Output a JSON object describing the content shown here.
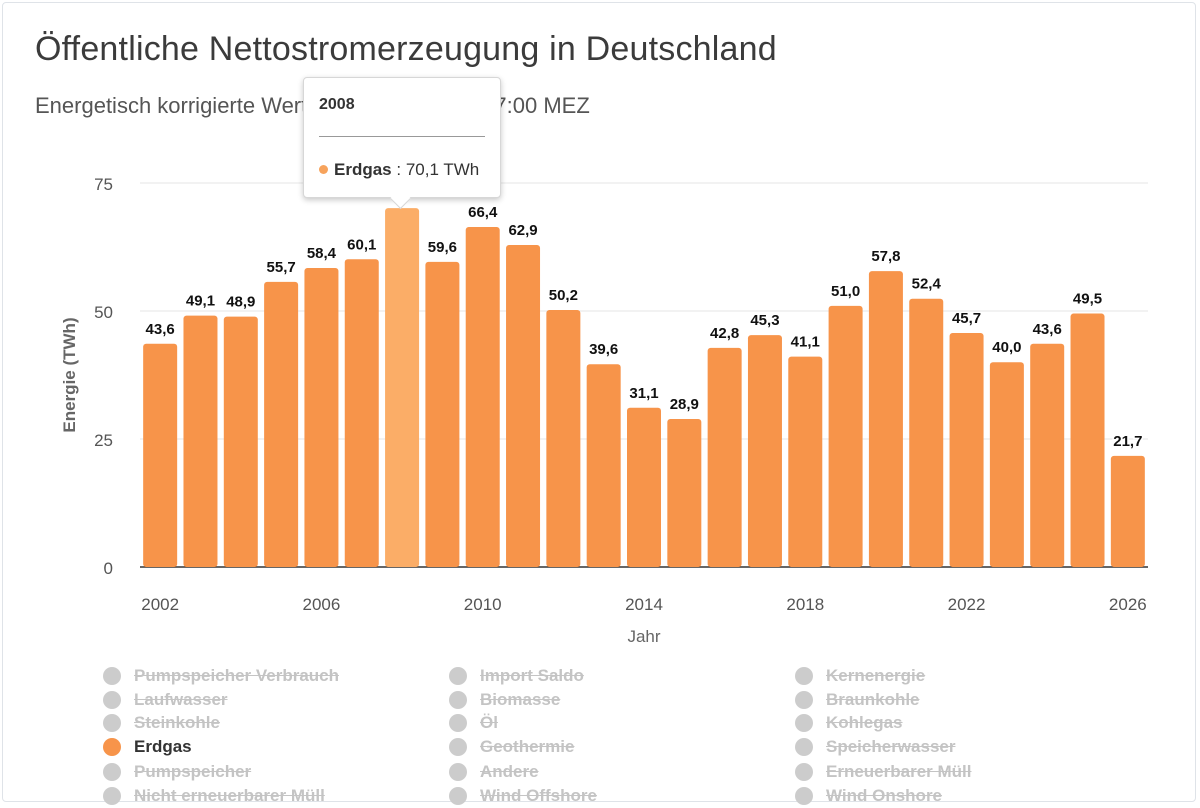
{
  "title": "Öffentliche Nettostromerzeugung in Deutschland",
  "subtitle": "Energetisch korrigierte Werte bis 25.03.2026, 17:00 MEZ",
  "tooltip": {
    "header": "2008",
    "series": "Erdgas",
    "value_text": ": 70,1 TWh",
    "dot_color": "#f7a35c"
  },
  "chart_data": {
    "type": "bar",
    "title": "Öffentliche Nettostromerzeugung in Deutschland",
    "subtitle": "Energetisch korrigierte Werte bis 25.03.2026, 17:00 MEZ",
    "xlabel": "Jahr",
    "ylabel": "Energie (TWh)",
    "ylim": [
      0,
      75
    ],
    "yticks": [
      "0",
      "25",
      "50",
      "75"
    ],
    "xticks": [
      "2002",
      "2006",
      "2010",
      "2014",
      "2018",
      "2022",
      "2026"
    ],
    "grid": true,
    "categories": [
      2002,
      2003,
      2004,
      2005,
      2006,
      2007,
      2008,
      2009,
      2010,
      2011,
      2012,
      2013,
      2014,
      2015,
      2016,
      2017,
      2018,
      2019,
      2020,
      2021,
      2022,
      2023,
      2024,
      2025,
      2026
    ],
    "series": [
      {
        "name": "Erdgas",
        "color": "#f7944a",
        "highlight_color": "#fbad67",
        "values": [
          43.6,
          49.1,
          48.9,
          55.7,
          58.4,
          60.1,
          70.1,
          59.6,
          66.4,
          62.9,
          50.2,
          39.6,
          31.1,
          28.9,
          42.8,
          45.3,
          41.1,
          51.0,
          57.8,
          52.4,
          45.7,
          40.0,
          43.6,
          49.5,
          21.7
        ],
        "labels": [
          "43,6",
          "49,1",
          "48,9",
          "55,7",
          "58,4",
          "60,1",
          "70,1",
          "59,6",
          "66,4",
          "62,9",
          "50,2",
          "39,6",
          "31,1",
          "28,9",
          "42,8",
          "45,3",
          "41,1",
          "51,0",
          "57,8",
          "52,4",
          "45,7",
          "40,0",
          "43,6",
          "49,5",
          "21,7"
        ]
      }
    ],
    "hovered_category": 2008
  },
  "legend": {
    "columns": [
      [
        {
          "label": "Pumpspeicher Verbrauch",
          "visible": false
        },
        {
          "label": "Laufwasser",
          "visible": false
        },
        {
          "label": "Steinkohle",
          "visible": false
        },
        {
          "label": "Erdgas",
          "visible": true,
          "color": "#f7944a"
        },
        {
          "label": "Pumpspeicher",
          "visible": false
        },
        {
          "label": "Nicht erneuerbarer Müll",
          "visible": false
        }
      ],
      [
        {
          "label": "Import Saldo",
          "visible": false
        },
        {
          "label": "Biomasse",
          "visible": false
        },
        {
          "label": "Öl",
          "visible": false
        },
        {
          "label": "Geothermie",
          "visible": false
        },
        {
          "label": "Andere",
          "visible": false
        },
        {
          "label": "Wind Offshore",
          "visible": false
        }
      ],
      [
        {
          "label": "Kernenergie",
          "visible": false
        },
        {
          "label": "Braunkohle",
          "visible": false
        },
        {
          "label": "Kohlegas",
          "visible": false
        },
        {
          "label": "Speicherwasser",
          "visible": false
        },
        {
          "label": "Erneuerbarer Müll",
          "visible": false
        },
        {
          "label": "Wind Onshore",
          "visible": false
        }
      ]
    ]
  }
}
